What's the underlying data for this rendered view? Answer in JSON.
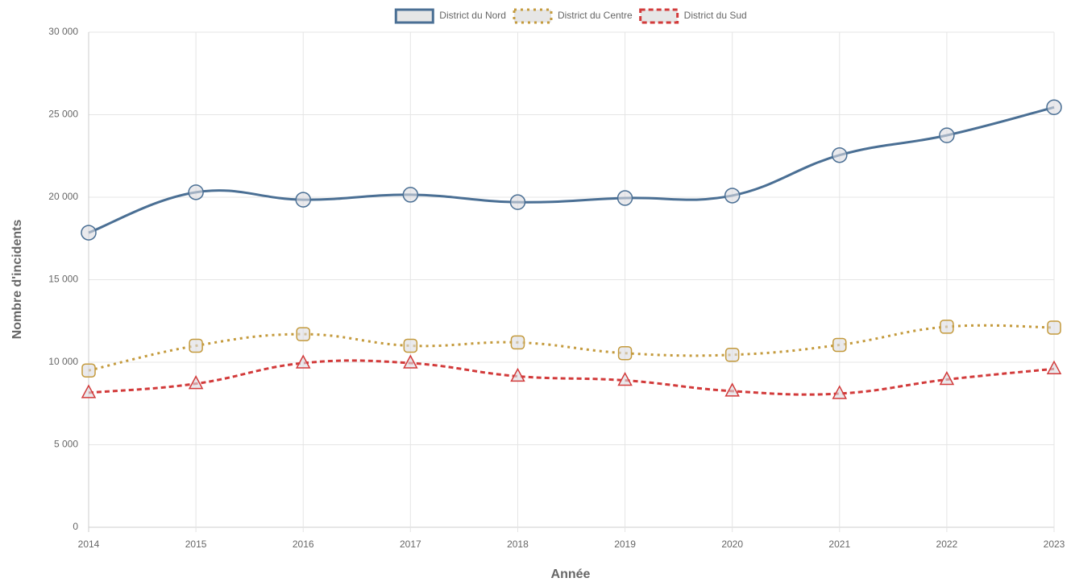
{
  "chart_data": {
    "type": "line",
    "x_label": "Année",
    "y_label": "Nombre d'incidents",
    "categories": [
      "2014",
      "2015",
      "2016",
      "2017",
      "2018",
      "2019",
      "2020",
      "2021",
      "2022",
      "2023"
    ],
    "series": [
      {
        "name": "District du Nord",
        "color": "#4a6f94",
        "marker": "circle",
        "dash": "solid",
        "values": [
          17850,
          20300,
          19850,
          20150,
          19700,
          19950,
          20100,
          22550,
          23750,
          25450
        ]
      },
      {
        "name": "District du Centre",
        "color": "#c49a3c",
        "marker": "square",
        "dash": "dotted",
        "values": [
          9500,
          11000,
          11700,
          11000,
          11200,
          10550,
          10450,
          11050,
          12150,
          12100
        ]
      },
      {
        "name": "District du Sud",
        "color": "#d23a3a",
        "marker": "triangle",
        "dash": "dashed",
        "values": [
          8150,
          8700,
          9950,
          9950,
          9150,
          8900,
          8250,
          8100,
          8950,
          9600
        ]
      }
    ],
    "ylim": [
      0,
      30000
    ],
    "yticks": [
      0,
      {
        "value": 5000,
        "label": "5 000"
      },
      {
        "value": 10000,
        "label": "10 000"
      },
      {
        "value": 15000,
        "label": "15 000"
      },
      {
        "value": 20000,
        "label": "20 000"
      },
      {
        "value": 25000,
        "label": "25 000"
      },
      {
        "value": 30000,
        "label": "30 000"
      }
    ],
    "grid": true,
    "legend": "top"
  }
}
